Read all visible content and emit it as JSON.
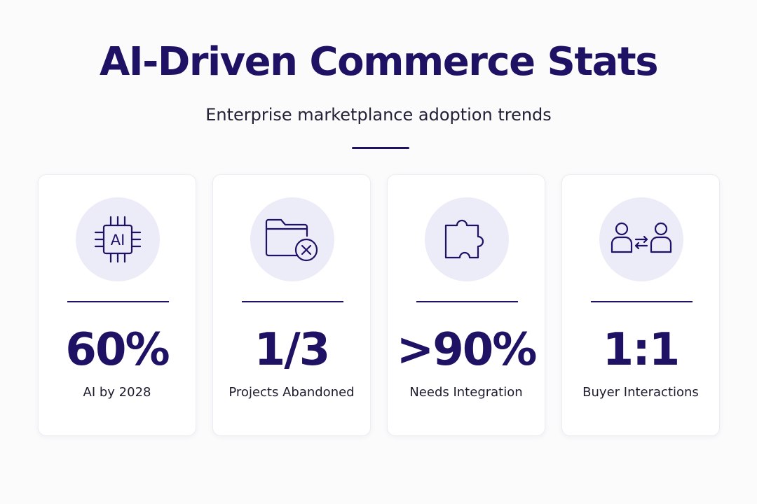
{
  "header": {
    "title": "AI-Driven Commerce Stats",
    "subtitle": "Enterprise marketplance adoption trends"
  },
  "cards": [
    {
      "icon": "ai-chip-icon",
      "icon_text": "AI",
      "value": "60%",
      "label": "AI by 2028"
    },
    {
      "icon": "folder-cancel-icon",
      "value": "1/3",
      "label": "Projects Abandoned"
    },
    {
      "icon": "puzzle-piece-icon",
      "value": ">90%",
      "label": "Needs Integration"
    },
    {
      "icon": "people-exchange-icon",
      "value": "1:1",
      "label": "Buyer Interactions"
    }
  ],
  "colors": {
    "accent": "#1f1163",
    "icon_background": "#ecebf8",
    "card_background": "#ffffff",
    "page_background": "#fbfbfc"
  }
}
